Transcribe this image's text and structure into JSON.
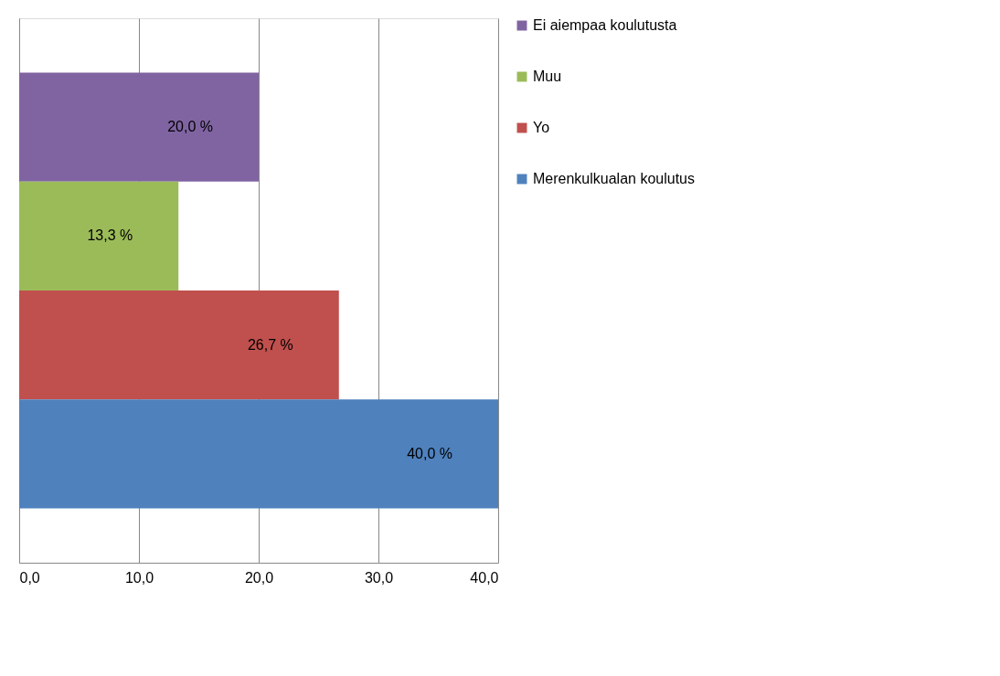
{
  "chart_data": {
    "type": "bar",
    "orientation": "horizontal",
    "categories": [
      null,
      null,
      null,
      null
    ],
    "series": [
      {
        "name": "Ei aiempaa koulutusta",
        "color": "#8064a2",
        "values": [
          20.0,
          null,
          null,
          null
        ],
        "value_labels": [
          "20,0 %",
          null,
          null,
          null
        ]
      },
      {
        "name": "Muu",
        "color": "#9bbb59",
        "values": [
          null,
          13.3,
          null,
          null
        ],
        "value_labels": [
          null,
          "13,3 %",
          null,
          null
        ]
      },
      {
        "name": "Yo",
        "color": "#c0504d",
        "values": [
          null,
          null,
          26.7,
          null
        ],
        "value_labels": [
          null,
          null,
          "26,7 %",
          null
        ]
      },
      {
        "name": "Merenkulkualan koulutus",
        "color": "#4f81bd",
        "values": [
          null,
          null,
          null,
          40.0
        ],
        "value_labels": [
          null,
          null,
          null,
          "40,0 %"
        ]
      }
    ],
    "xlim": [
      0,
      40
    ],
    "xticks": [
      {
        "value": 0,
        "label": "0,0"
      },
      {
        "value": 10,
        "label": "10,0"
      },
      {
        "value": 20,
        "label": "20,0"
      },
      {
        "value": 30,
        "label": "30,0"
      },
      {
        "value": 40,
        "label": "40,0"
      }
    ],
    "grid": "x",
    "legend": "right"
  }
}
